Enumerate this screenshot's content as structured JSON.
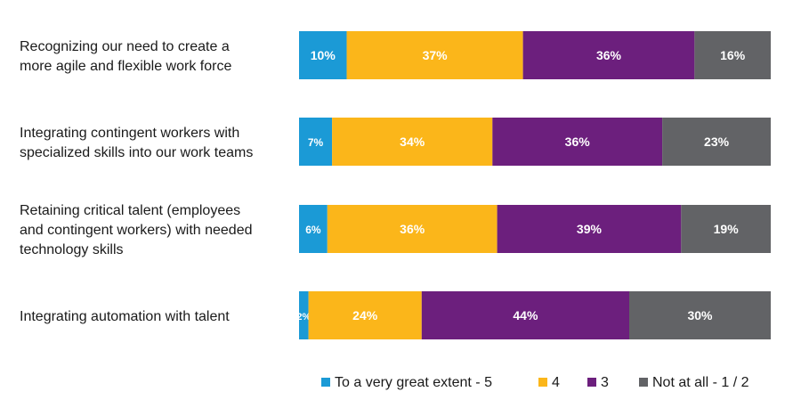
{
  "chart_data": {
    "type": "bar",
    "orientation": "horizontal",
    "stacked": true,
    "normalized": true,
    "categories": [
      "Recognizing our need to create a more agile and flexible work force",
      "Integrating contingent workers with specialized skills into our work teams",
      "Retaining critical talent (employees and contingent workers) with needed technology skills",
      "Integrating automation with talent"
    ],
    "category_lines": [
      [
        "Recognizing our need to create a",
        "more agile and flexible work force"
      ],
      [
        "Integrating contingent workers with",
        "specialized skills into our work teams"
      ],
      [
        "Retaining critical talent (employees",
        "and contingent workers) with needed",
        "technology skills"
      ],
      [
        "Integrating automation with talent"
      ]
    ],
    "series": [
      {
        "name": "To a very great extent - 5",
        "color": "#1b9ad6",
        "values": [
          10,
          7,
          6,
          2
        ]
      },
      {
        "name": "4",
        "color": "#fbb61a",
        "values": [
          37,
          34,
          36,
          24
        ]
      },
      {
        "name": "3",
        "color": "#6c1f7d",
        "values": [
          36,
          36,
          39,
          44
        ]
      },
      {
        "name": "Not at all - 1 / 2",
        "color": "#626366",
        "values": [
          16,
          23,
          19,
          30
        ]
      }
    ],
    "value_suffix": "%",
    "legend_position": "bottom-right",
    "grid": false,
    "title": "",
    "xlabel": "",
    "ylabel": ""
  }
}
